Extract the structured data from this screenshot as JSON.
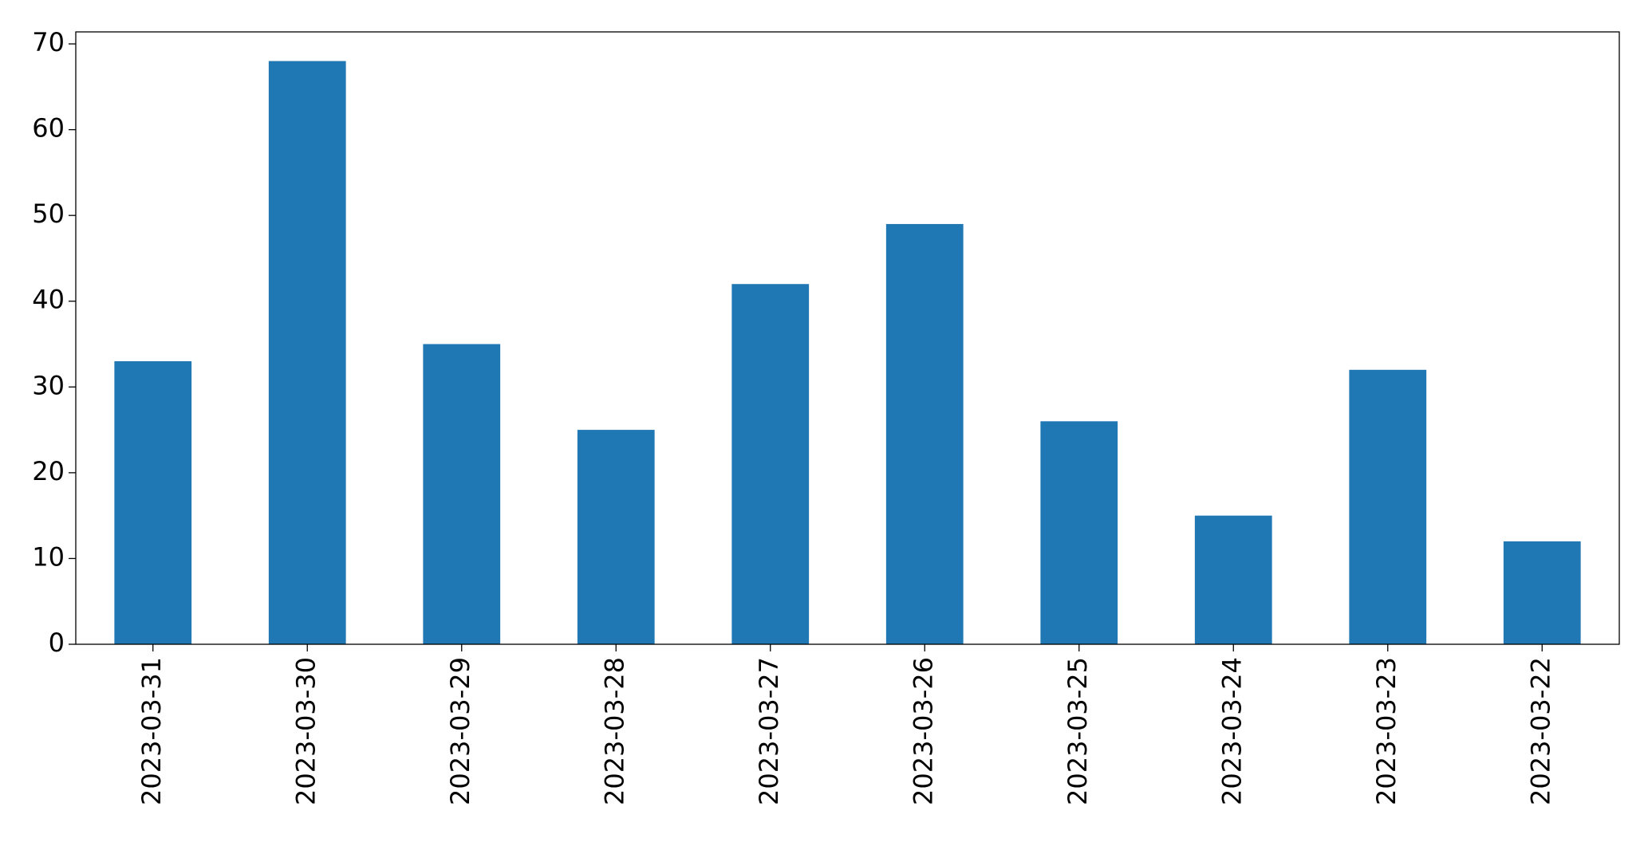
{
  "chart_data": {
    "type": "bar",
    "categories": [
      "2023-03-31",
      "2023-03-30",
      "2023-03-29",
      "2023-03-28",
      "2023-03-27",
      "2023-03-26",
      "2023-03-25",
      "2023-03-24",
      "2023-03-23",
      "2023-03-22"
    ],
    "values": [
      33,
      68,
      35,
      25,
      42,
      49,
      26,
      15,
      32,
      12
    ],
    "color": "#1f77b4",
    "ylim": [
      0,
      71.4
    ],
    "yticks": [
      0,
      10,
      20,
      30,
      40,
      50,
      60,
      70
    ],
    "grid": false
  }
}
